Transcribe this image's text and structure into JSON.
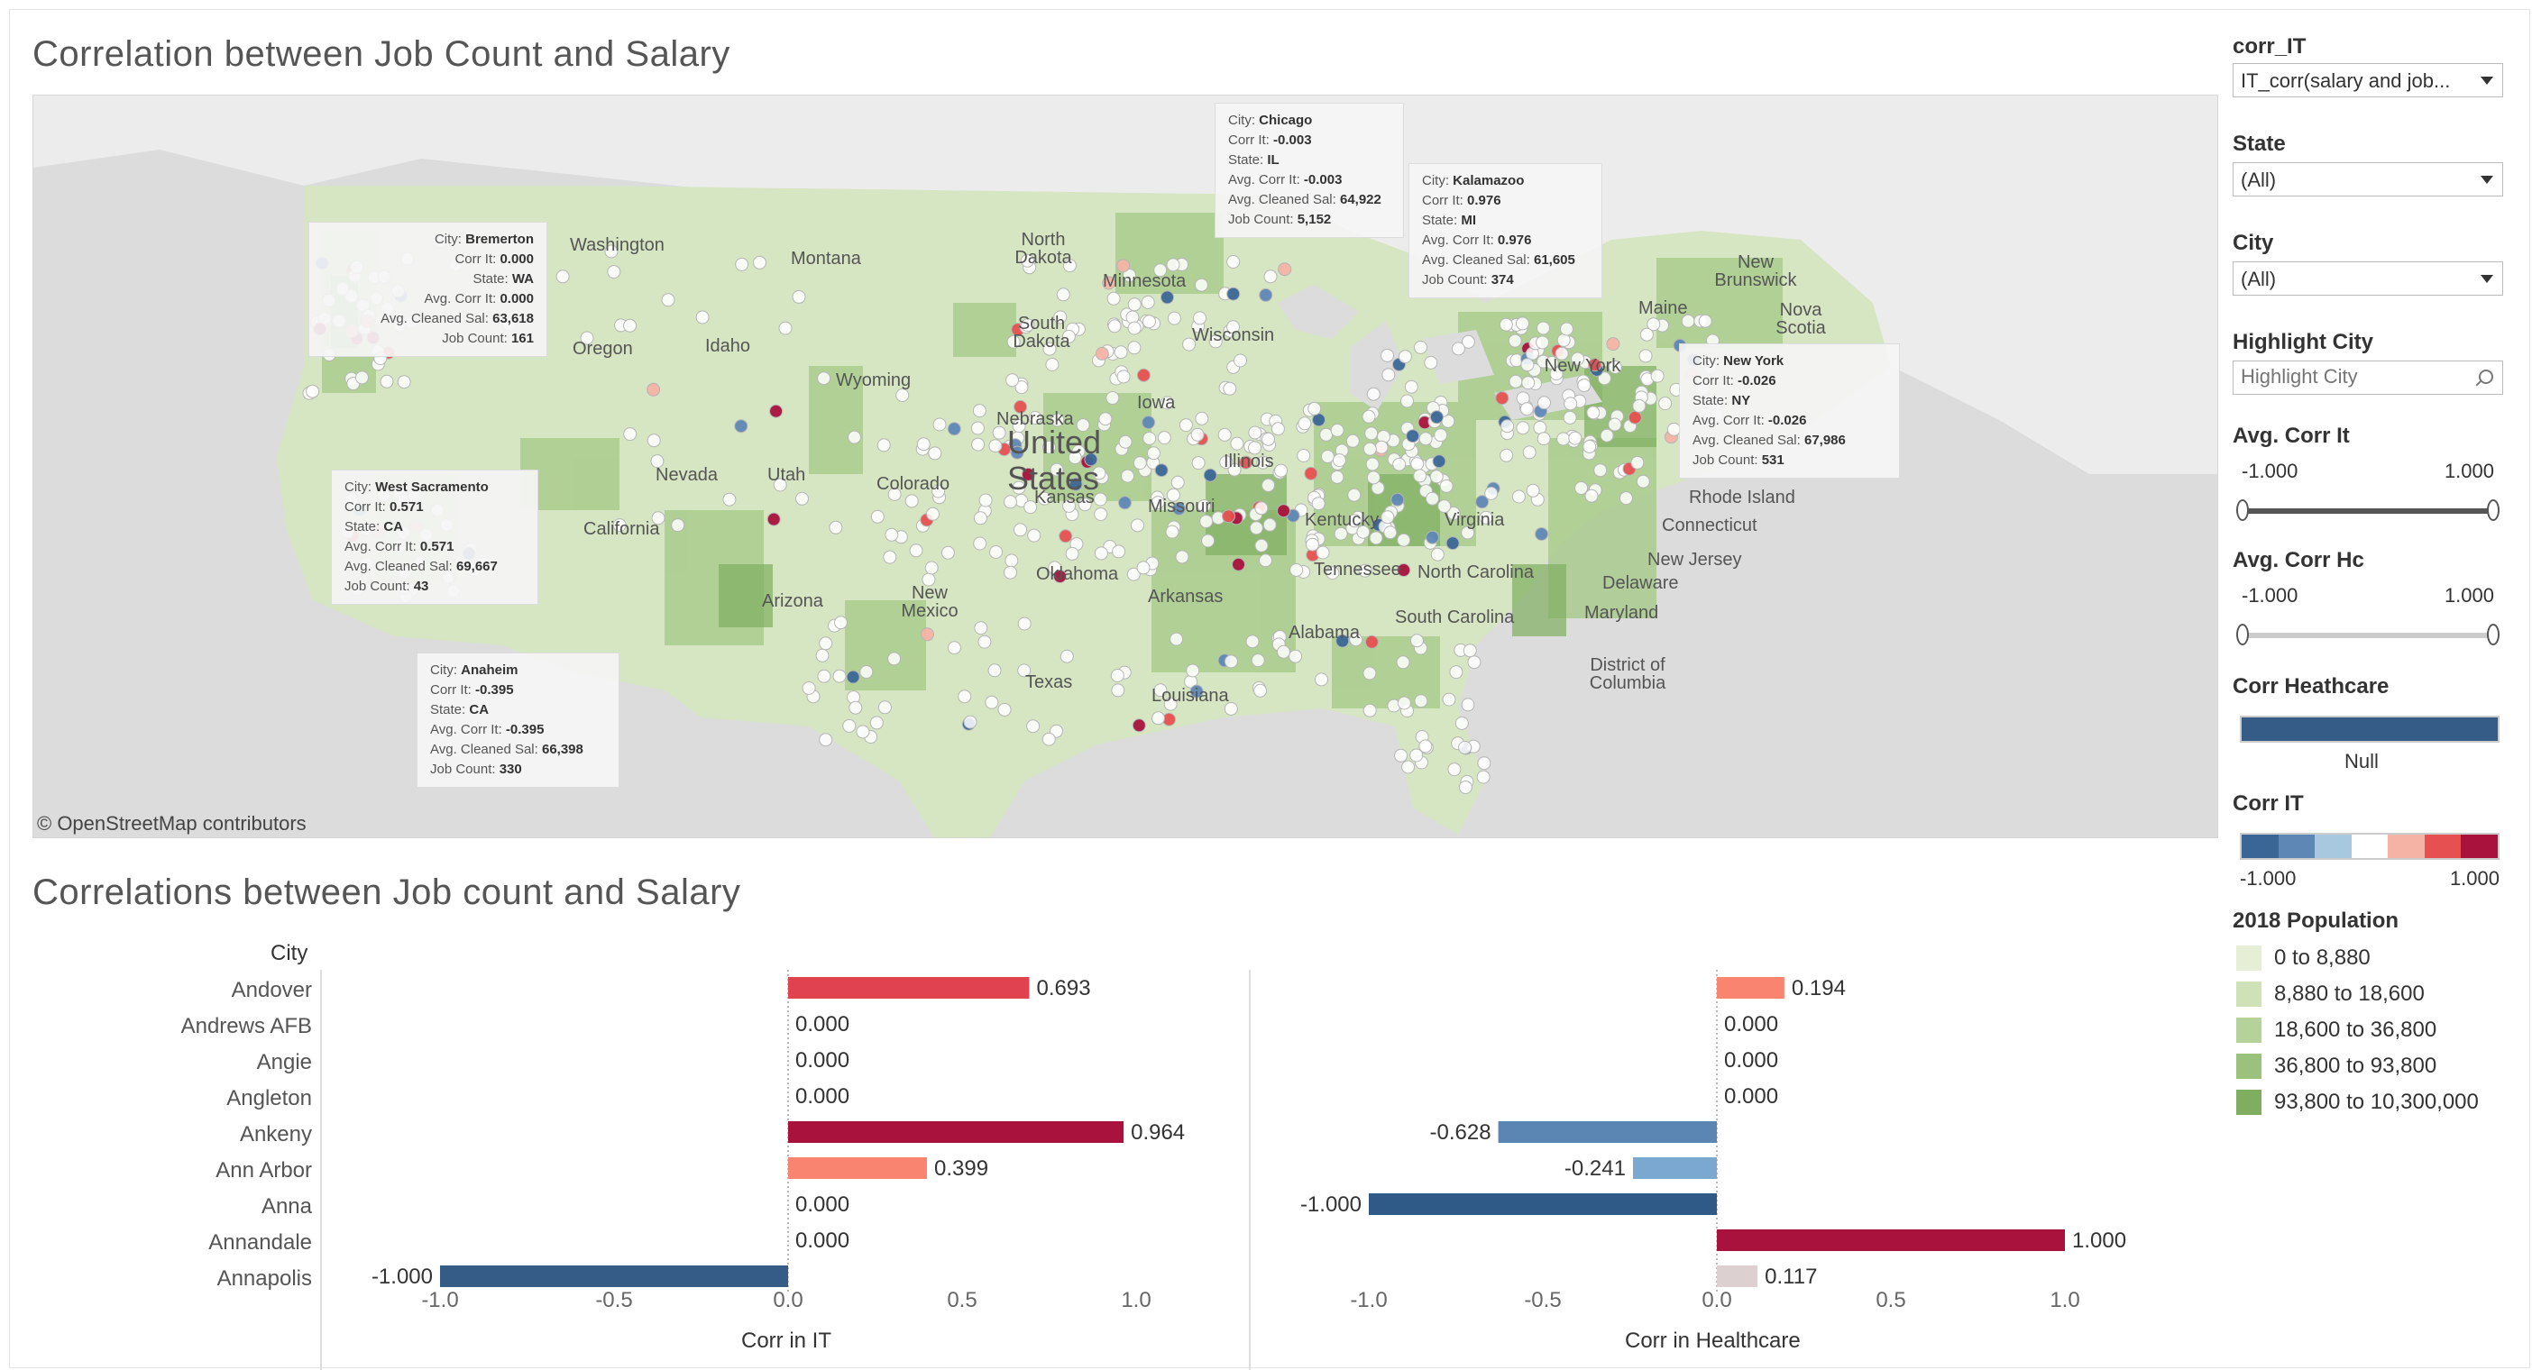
{
  "map_title": "Correlation between Job Count and Salary",
  "bar_title": "Correlations between Job count and Salary",
  "map": {
    "attribution": "© OpenStreetMap contributors",
    "country_label": [
      "United",
      "States"
    ],
    "state_labels": [
      {
        "id": "washington",
        "text": "Washington"
      },
      {
        "id": "montana",
        "text": "Montana"
      },
      {
        "id": "north-dakota",
        "text": "North Dakota"
      },
      {
        "id": "minnesota",
        "text": "Minnesota"
      },
      {
        "id": "south-dakota",
        "text": "South Dakota"
      },
      {
        "id": "oregon",
        "text": "Oregon"
      },
      {
        "id": "idaho",
        "text": "Idaho"
      },
      {
        "id": "wyoming",
        "text": "Wyoming"
      },
      {
        "id": "wisconsin",
        "text": "Wisconsin"
      },
      {
        "id": "iowa",
        "text": "Iowa"
      },
      {
        "id": "nebraska",
        "text": "Nebraska"
      },
      {
        "id": "nevada",
        "text": "Nevada"
      },
      {
        "id": "utah",
        "text": "Utah"
      },
      {
        "id": "colorado",
        "text": "Colorado"
      },
      {
        "id": "kansas",
        "text": "Kansas"
      },
      {
        "id": "illinois",
        "text": "Illinois"
      },
      {
        "id": "missouri",
        "text": "Missouri"
      },
      {
        "id": "california",
        "text": "California"
      },
      {
        "id": "kentucky",
        "text": "Kentucky"
      },
      {
        "id": "virginia",
        "text": "Virginia"
      },
      {
        "id": "oklahoma",
        "text": "Oklahoma"
      },
      {
        "id": "tennessee",
        "text": "Tennessee"
      },
      {
        "id": "arizona",
        "text": "Arizona"
      },
      {
        "id": "new-mexico",
        "text": "New Mexico"
      },
      {
        "id": "arkansas",
        "text": "Arkansas"
      },
      {
        "id": "north-carolina",
        "text": "North Carolina"
      },
      {
        "id": "south-carolina",
        "text": "South Carolina"
      },
      {
        "id": "alabama",
        "text": "Alabama"
      },
      {
        "id": "texas",
        "text": "Texas"
      },
      {
        "id": "louisiana",
        "text": "Louisiana"
      },
      {
        "id": "new-york",
        "text": "New York"
      },
      {
        "id": "maine",
        "text": "Maine"
      },
      {
        "id": "new-brunswick",
        "text": "New Brunswick"
      },
      {
        "id": "nova-scotia",
        "text": "Nova Scotia"
      },
      {
        "id": "rhode-island",
        "text": "Rhode Island"
      },
      {
        "id": "connecticut",
        "text": "Connecticut"
      },
      {
        "id": "new-jersey",
        "text": "New Jersey"
      },
      {
        "id": "delaware",
        "text": "Delaware"
      },
      {
        "id": "maryland",
        "text": "Maryland"
      },
      {
        "id": "dc",
        "text": "District of Columbia"
      }
    ],
    "tooltips": [
      {
        "id": "chicago",
        "city": "Chicago",
        "corr_it": "-0.003",
        "state": "IL",
        "avg_corr_it": "-0.003",
        "avg_sal": "64,922",
        "job_count": "5,152"
      },
      {
        "id": "kalamazoo",
        "city": "Kalamazoo",
        "corr_it": "0.976",
        "state": "MI",
        "avg_corr_it": "0.976",
        "avg_sal": "61,605",
        "job_count": "374"
      },
      {
        "id": "bremerton",
        "city": "Bremerton",
        "corr_it": "0.000",
        "state": "WA",
        "avg_corr_it": "0.000",
        "avg_sal": "63,618",
        "job_count": "161"
      },
      {
        "id": "new-york",
        "city": "New York",
        "corr_it": "-0.026",
        "state": "NY",
        "avg_corr_it": "-0.026",
        "avg_sal": "67,986",
        "job_count": "531"
      },
      {
        "id": "west-sacramento",
        "city": "West Sacramento",
        "corr_it": "0.571",
        "state": "CA",
        "avg_corr_it": "0.571",
        "avg_sal": "69,667",
        "job_count": "43"
      },
      {
        "id": "anaheim",
        "city": "Anaheim",
        "corr_it": "-0.395",
        "state": "CA",
        "avg_corr_it": "-0.395",
        "avg_sal": "66,398",
        "job_count": "330"
      }
    ],
    "tooltip_labels": {
      "city": "City:",
      "corr_it": "Corr It:",
      "state": "State:",
      "avg_corr_it": "Avg. Corr It:",
      "avg_sal": "Avg. Cleaned Sal:",
      "job_count": "Job Count:"
    }
  },
  "filters": {
    "corr_it": {
      "label": "corr_IT",
      "value": "IT_corr(salary and job..."
    },
    "state": {
      "label": "State",
      "value": "(All)"
    },
    "city": {
      "label": "City",
      "value": "(All)"
    },
    "highlight": {
      "label": "Highlight City",
      "placeholder": "Highlight City"
    },
    "avg_corr_it": {
      "label": "Avg. Corr It",
      "min": "-1.000",
      "max": "1.000"
    },
    "avg_corr_hc": {
      "label": "Avg. Corr Hc",
      "min": "-1.000",
      "max": "1.000"
    }
  },
  "legends": {
    "corr_healthcare": {
      "label": "Corr Heathcare",
      "null_label": "Null",
      "color": "#355c87"
    },
    "corr_it": {
      "label": "Corr IT",
      "min": "-1.000",
      "max": "1.000",
      "colors": [
        "#3a6696",
        "#5e87b5",
        "#a8c8e0",
        "#ffffff",
        "#f5b3a5",
        "#e65050",
        "#a8123c"
      ]
    },
    "population": {
      "label": "2018 Population",
      "items": [
        {
          "text": "0 to 8,880",
          "color": "#e6eed6"
        },
        {
          "text": "8,880 to 18,600",
          "color": "#cfe1b6"
        },
        {
          "text": "18,600 to 36,800",
          "color": "#b5d29a"
        },
        {
          "text": "36,800 to 93,800",
          "color": "#9ac27c"
        },
        {
          "text": "93,800 to 10,300,000",
          "color": "#7fae60"
        }
      ]
    }
  },
  "chart_data": [
    {
      "type": "bar",
      "orientation": "horizontal",
      "title": "Correlations between Job count and Salary",
      "category_header": "City",
      "categories": [
        "Andover",
        "Andrews AFB",
        "Angie",
        "Angleton",
        "Ankeny",
        "Ann Arbor",
        "Anna",
        "Annandale",
        "Annapolis"
      ],
      "values": [
        0.693,
        0.0,
        0.0,
        0.0,
        0.964,
        0.399,
        0.0,
        0.0,
        -1.0
      ],
      "data_labels": [
        "0.693",
        "0.000",
        "0.000",
        "0.000",
        "0.964",
        "0.399",
        "0.000",
        "0.000",
        "-1.000"
      ],
      "colors": [
        "#e0434f",
        "#cccccc",
        "#cccccc",
        "#cccccc",
        "#a8123c",
        "#f98470",
        "#cccccc",
        "#cccccc",
        "#355c87"
      ],
      "xlabel": "Corr in IT",
      "xlim": [
        -1.0,
        1.0
      ],
      "xticks": [
        "-1.0",
        "-0.5",
        "0.0",
        "0.5",
        "1.0"
      ]
    },
    {
      "type": "bar",
      "orientation": "horizontal",
      "categories": [
        "Andover",
        "Andrews AFB",
        "Angie",
        "Angleton",
        "Ankeny",
        "Ann Arbor",
        "Anna",
        "Annandale",
        "Annapolis"
      ],
      "values": [
        0.194,
        0.0,
        0.0,
        0.0,
        -0.628,
        -0.241,
        -1.0,
        1.0,
        0.117
      ],
      "data_labels": [
        "0.194",
        "0.000",
        "0.000",
        "0.000",
        "-0.628",
        "-0.241",
        "-1.000",
        "1.000",
        "0.117"
      ],
      "colors": [
        "#f98470",
        "#cccccc",
        "#cccccc",
        "#cccccc",
        "#5b86b3",
        "#7ba8d1",
        "#2f5a87",
        "#a8123c",
        "#ddd0d0"
      ],
      "xlabel": "Corr in Healthcare",
      "xlim": [
        -1.0,
        1.0
      ],
      "xticks": [
        "-1.0",
        "-0.5",
        "0.0",
        "0.5",
        "1.0"
      ]
    }
  ]
}
